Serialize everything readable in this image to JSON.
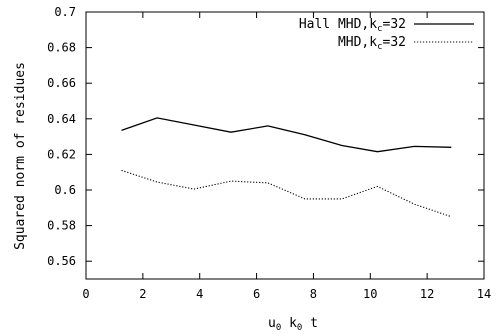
{
  "chart_data": {
    "type": "line",
    "xlabel": {
      "base": "u",
      "sub1": "0",
      "mid": " k",
      "sub2": "0",
      "end": " t"
    },
    "ylabel": "Squared norm of residues",
    "xlim": [
      0,
      14
    ],
    "ylim": [
      0.55,
      0.7
    ],
    "xticks": [
      0,
      2,
      4,
      6,
      8,
      10,
      12,
      14
    ],
    "xtick_labels": [
      "0",
      "2",
      "4",
      "6",
      "8",
      "10",
      "12",
      "14"
    ],
    "yticks": [
      0.56,
      0.58,
      0.6,
      0.62,
      0.64,
      0.66,
      0.68,
      0.7
    ],
    "ytick_labels": [
      "0.56",
      "0.58",
      "0.6",
      "0.62",
      "0.64",
      "0.66",
      "0.68",
      "0.7"
    ],
    "grid": false,
    "legend_position": "top-right",
    "series": [
      {
        "name": {
          "base": "Hall MHD,k",
          "sub": "c",
          "end": "=32"
        },
        "style": "solid",
        "color": "#000000",
        "x": [
          1.25,
          2.5,
          3.8,
          5.1,
          6.4,
          7.7,
          9.0,
          10.25,
          11.55,
          12.85
        ],
        "y": [
          0.6335,
          0.6405,
          0.6365,
          0.6325,
          0.636,
          0.631,
          0.625,
          0.6215,
          0.6245,
          0.624
        ]
      },
      {
        "name": {
          "base": "MHD,k",
          "sub": "c",
          "end": "=32"
        },
        "style": "dotted",
        "color": "#000000",
        "x": [
          1.25,
          2.5,
          3.8,
          5.1,
          6.4,
          7.7,
          9.0,
          10.25,
          11.55,
          12.85
        ],
        "y": [
          0.611,
          0.6045,
          0.6005,
          0.605,
          0.604,
          0.595,
          0.595,
          0.602,
          0.592,
          0.585
        ]
      }
    ]
  }
}
